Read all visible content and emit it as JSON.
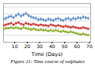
{
  "chart_data": {
    "type": "line",
    "title": "Figure 11: Time course of sulphates",
    "xlabel": "Time (Days)",
    "x": [
      1,
      3,
      5,
      7,
      9,
      11,
      13,
      15,
      17,
      19,
      21,
      23,
      25,
      27,
      29,
      31,
      33,
      35,
      37,
      39,
      41,
      43,
      45,
      47,
      49,
      51,
      53,
      55,
      57,
      59,
      61,
      63,
      65,
      67,
      69
    ],
    "series": [
      {
        "color": "#5588cc",
        "marker": "diamond",
        "values": [
          0.63,
          0.64,
          0.66,
          0.67,
          0.65,
          0.68,
          0.7,
          0.67,
          0.69,
          0.71,
          0.68,
          0.66,
          0.65,
          0.64,
          0.62,
          0.63,
          0.62,
          0.61,
          0.63,
          0.62,
          0.61,
          0.63,
          0.64,
          0.62,
          0.61,
          0.63,
          0.64,
          0.62,
          0.64,
          0.63,
          0.65,
          0.64,
          0.66,
          0.65,
          0.64
        ]
      },
      {
        "color": "#cc3333",
        "marker": "square",
        "values": [
          0.54,
          0.55,
          0.56,
          0.57,
          0.55,
          0.57,
          0.58,
          0.56,
          0.55,
          0.57,
          0.56,
          0.55,
          0.56,
          0.55,
          0.54,
          0.55,
          0.54,
          0.54,
          0.53,
          0.55,
          0.54,
          0.53,
          0.54,
          0.53,
          0.52,
          0.53,
          0.52,
          0.51,
          0.52,
          0.51,
          0.5,
          0.5,
          0.51,
          0.5,
          0.49
        ]
      },
      {
        "color": "#88aa22",
        "marker": "triangle",
        "values": [
          0.49,
          0.5,
          0.5,
          0.51,
          0.5,
          0.51,
          0.5,
          0.49,
          0.51,
          0.5,
          0.49,
          0.48,
          0.49,
          0.48,
          0.47,
          0.48,
          0.47,
          0.47,
          0.46,
          0.47,
          0.46,
          0.47,
          0.46,
          0.45,
          0.46,
          0.45,
          0.44,
          0.45,
          0.44,
          0.43,
          0.42,
          0.41,
          0.42,
          0.41,
          0.4
        ]
      }
    ],
    "xlim": [
      1,
      71
    ],
    "ylim": [
      0.3,
      0.85
    ],
    "xticks": [
      10,
      20,
      30,
      40,
      50,
      60,
      70
    ],
    "yticks": [
      0.3,
      0.4,
      0.5,
      0.6,
      0.7,
      0.8
    ],
    "grid": true,
    "tick_labels": "x"
  }
}
